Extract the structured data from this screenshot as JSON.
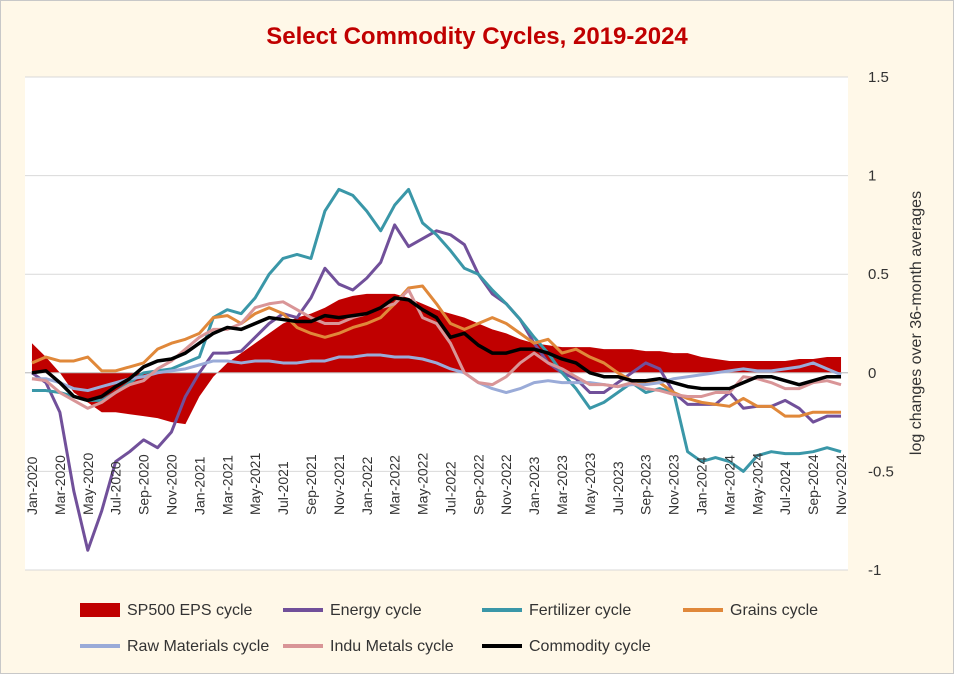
{
  "chart_data": {
    "type": "line",
    "title": "Select Commodity Cycles, 2019-2024",
    "y_label": "log changes over 36-month averages",
    "categories": [
      "Jan-2020",
      null,
      "Mar-2020",
      null,
      "May-2020",
      null,
      "Jul-2020",
      null,
      "Sep-2020",
      null,
      "Nov-2020",
      null,
      "Jan-2021",
      null,
      "Mar-2021",
      null,
      "May-2021",
      null,
      "Jul-2021",
      null,
      "Sep-2021",
      null,
      "Nov-2021",
      null,
      "Jan-2022",
      null,
      "Mar-2022",
      null,
      "May-2022",
      null,
      "Jul-2022",
      null,
      "Sep-2022",
      null,
      "Nov-2022",
      null,
      "Jan-2023",
      null,
      "Mar-2023",
      null,
      "May-2023",
      null,
      "Jul-2023",
      null,
      "Sep-2023",
      null,
      "Nov-2023",
      null,
      "Jan-2024",
      null,
      "Mar-2024",
      null,
      "May-2024",
      null,
      "Jul-2024",
      null,
      "Sep-2024",
      null,
      "Nov-2024"
    ],
    "ylim": [
      -1,
      1.5
    ],
    "yticks": [
      -1,
      -0.5,
      0,
      0.5,
      1,
      1.5
    ],
    "grid": true,
    "y_axis_side": "right",
    "legend": "bottom",
    "series": [
      {
        "name": "SP500 EPS cycle",
        "color": "#c00000",
        "style": "area",
        "values": [
          0.15,
          0.08,
          0,
          -0.1,
          -0.15,
          -0.2,
          -0.2,
          -0.21,
          -0.22,
          -0.23,
          -0.25,
          -0.26,
          -0.12,
          -0.02,
          0.05,
          0.1,
          0.15,
          0.2,
          0.25,
          0.28,
          0.3,
          0.33,
          0.37,
          0.39,
          0.4,
          0.4,
          0.4,
          0.38,
          0.35,
          0.32,
          0.3,
          0.28,
          0.25,
          0.22,
          0.2,
          0.17,
          0.15,
          0.14,
          0.13,
          0.13,
          0.13,
          0.12,
          0.12,
          0.12,
          0.11,
          0.11,
          0.1,
          0.1,
          0.08,
          0.07,
          0.06,
          0.06,
          0.06,
          0.06,
          0.06,
          0.07,
          0.07,
          0.08,
          0.08
        ]
      },
      {
        "name": "Energy cycle",
        "color": "#71509a",
        "style": "line",
        "values": [
          0,
          -0.05,
          -0.2,
          -0.6,
          -0.9,
          -0.7,
          -0.45,
          -0.4,
          -0.34,
          -0.38,
          -0.3,
          -0.12,
          0,
          0.1,
          0.1,
          0.11,
          0.18,
          0.25,
          0.3,
          0.28,
          0.38,
          0.53,
          0.45,
          0.42,
          0.48,
          0.56,
          0.75,
          0.64,
          0.68,
          0.72,
          0.7,
          0.65,
          0.5,
          0.4,
          0.35,
          0.27,
          0.15,
          0.05,
          0,
          -0.03,
          -0.1,
          -0.1,
          -0.05,
          0,
          0.05,
          0.02,
          -0.1,
          -0.16,
          -0.16,
          -0.16,
          -0.1,
          -0.18,
          -0.17,
          -0.17,
          -0.14,
          -0.18,
          -0.25,
          -0.22,
          -0.22
        ]
      },
      {
        "name": "Fertilizer cycle",
        "color": "#3a97a8",
        "style": "line",
        "values": [
          -0.09,
          -0.09,
          -0.1,
          -0.12,
          -0.14,
          -0.14,
          -0.1,
          -0.05,
          0,
          0.01,
          0.02,
          0.05,
          0.08,
          0.28,
          0.32,
          0.3,
          0.38,
          0.5,
          0.58,
          0.6,
          0.58,
          0.82,
          0.93,
          0.9,
          0.82,
          0.72,
          0.85,
          0.93,
          0.76,
          0.7,
          0.62,
          0.53,
          0.5,
          0.42,
          0.35,
          0.27,
          0.18,
          0.1,
          0,
          -0.08,
          -0.18,
          -0.15,
          -0.1,
          -0.05,
          -0.1,
          -0.08,
          -0.1,
          -0.4,
          -0.45,
          -0.43,
          -0.45,
          -0.5,
          -0.42,
          -0.4,
          -0.41,
          -0.41,
          -0.4,
          -0.38,
          -0.4
        ]
      },
      {
        "name": "Grains cycle",
        "color": "#e0883a",
        "style": "line",
        "values": [
          0.05,
          0.08,
          0.06,
          0.06,
          0.08,
          0.01,
          0.01,
          0.03,
          0.05,
          0.12,
          0.15,
          0.17,
          0.2,
          0.28,
          0.29,
          0.25,
          0.3,
          0.33,
          0.3,
          0.23,
          0.2,
          0.18,
          0.2,
          0.23,
          0.25,
          0.28,
          0.35,
          0.43,
          0.44,
          0.35,
          0.25,
          0.22,
          0.25,
          0.28,
          0.25,
          0.2,
          0.15,
          0.17,
          0.1,
          0.12,
          0.08,
          0.05,
          0,
          -0.04,
          -0.05,
          -0.05,
          -0.1,
          -0.13,
          -0.15,
          -0.16,
          -0.17,
          -0.13,
          -0.17,
          -0.17,
          -0.22,
          -0.22,
          -0.2,
          -0.2,
          -0.2
        ]
      },
      {
        "name": "Raw Materials cycle",
        "color": "#9aabd8",
        "style": "line",
        "values": [
          -0.03,
          -0.03,
          -0.05,
          -0.08,
          -0.09,
          -0.07,
          -0.05,
          -0.03,
          -0.02,
          0,
          0.01,
          0.02,
          0.04,
          0.06,
          0.06,
          0.05,
          0.06,
          0.06,
          0.05,
          0.05,
          0.06,
          0.06,
          0.08,
          0.08,
          0.09,
          0.09,
          0.08,
          0.08,
          0.07,
          0.05,
          0.02,
          0,
          -0.05,
          -0.08,
          -0.1,
          -0.08,
          -0.05,
          -0.04,
          -0.05,
          -0.05,
          -0.05,
          -0.06,
          -0.07,
          -0.06,
          -0.06,
          -0.05,
          -0.03,
          -0.02,
          -0.01,
          0,
          0.01,
          0.02,
          0.01,
          0.01,
          0.02,
          0.03,
          0.05,
          0.02,
          -0.01
        ]
      },
      {
        "name": "Indu Metals cycle",
        "color": "#d99597",
        "style": "line",
        "values": [
          -0.03,
          -0.04,
          -0.1,
          -0.14,
          -0.18,
          -0.15,
          -0.1,
          -0.06,
          -0.04,
          0.02,
          0.06,
          0.12,
          0.18,
          0.22,
          0.22,
          0.25,
          0.33,
          0.35,
          0.36,
          0.32,
          0.28,
          0.25,
          0.25,
          0.28,
          0.3,
          0.33,
          0.35,
          0.42,
          0.28,
          0.25,
          0.15,
          0,
          -0.05,
          -0.06,
          -0.02,
          0.05,
          0.1,
          0.05,
          0.02,
          -0.02,
          -0.06,
          -0.06,
          -0.07,
          -0.05,
          -0.08,
          -0.09,
          -0.11,
          -0.12,
          -0.12,
          -0.1,
          -0.1,
          -0.02,
          -0.03,
          -0.05,
          -0.08,
          -0.08,
          -0.05,
          -0.04,
          -0.06
        ]
      },
      {
        "name": "Commodity cycle",
        "color": "#000000",
        "style": "line",
        "values": [
          0,
          0.01,
          -0.05,
          -0.12,
          -0.14,
          -0.12,
          -0.07,
          -0.03,
          0.03,
          0.06,
          0.07,
          0.1,
          0.15,
          0.2,
          0.23,
          0.22,
          0.25,
          0.28,
          0.27,
          0.26,
          0.26,
          0.29,
          0.28,
          0.29,
          0.3,
          0.33,
          0.38,
          0.37,
          0.32,
          0.28,
          0.18,
          0.2,
          0.14,
          0.1,
          0.1,
          0.12,
          0.12,
          0.1,
          0.07,
          0.05,
          0,
          -0.02,
          -0.02,
          -0.04,
          -0.04,
          -0.03,
          -0.05,
          -0.07,
          -0.08,
          -0.08,
          -0.08,
          -0.05,
          -0.02,
          -0.02,
          -0.04,
          -0.06,
          -0.04,
          -0.02,
          -0.02
        ]
      }
    ]
  }
}
